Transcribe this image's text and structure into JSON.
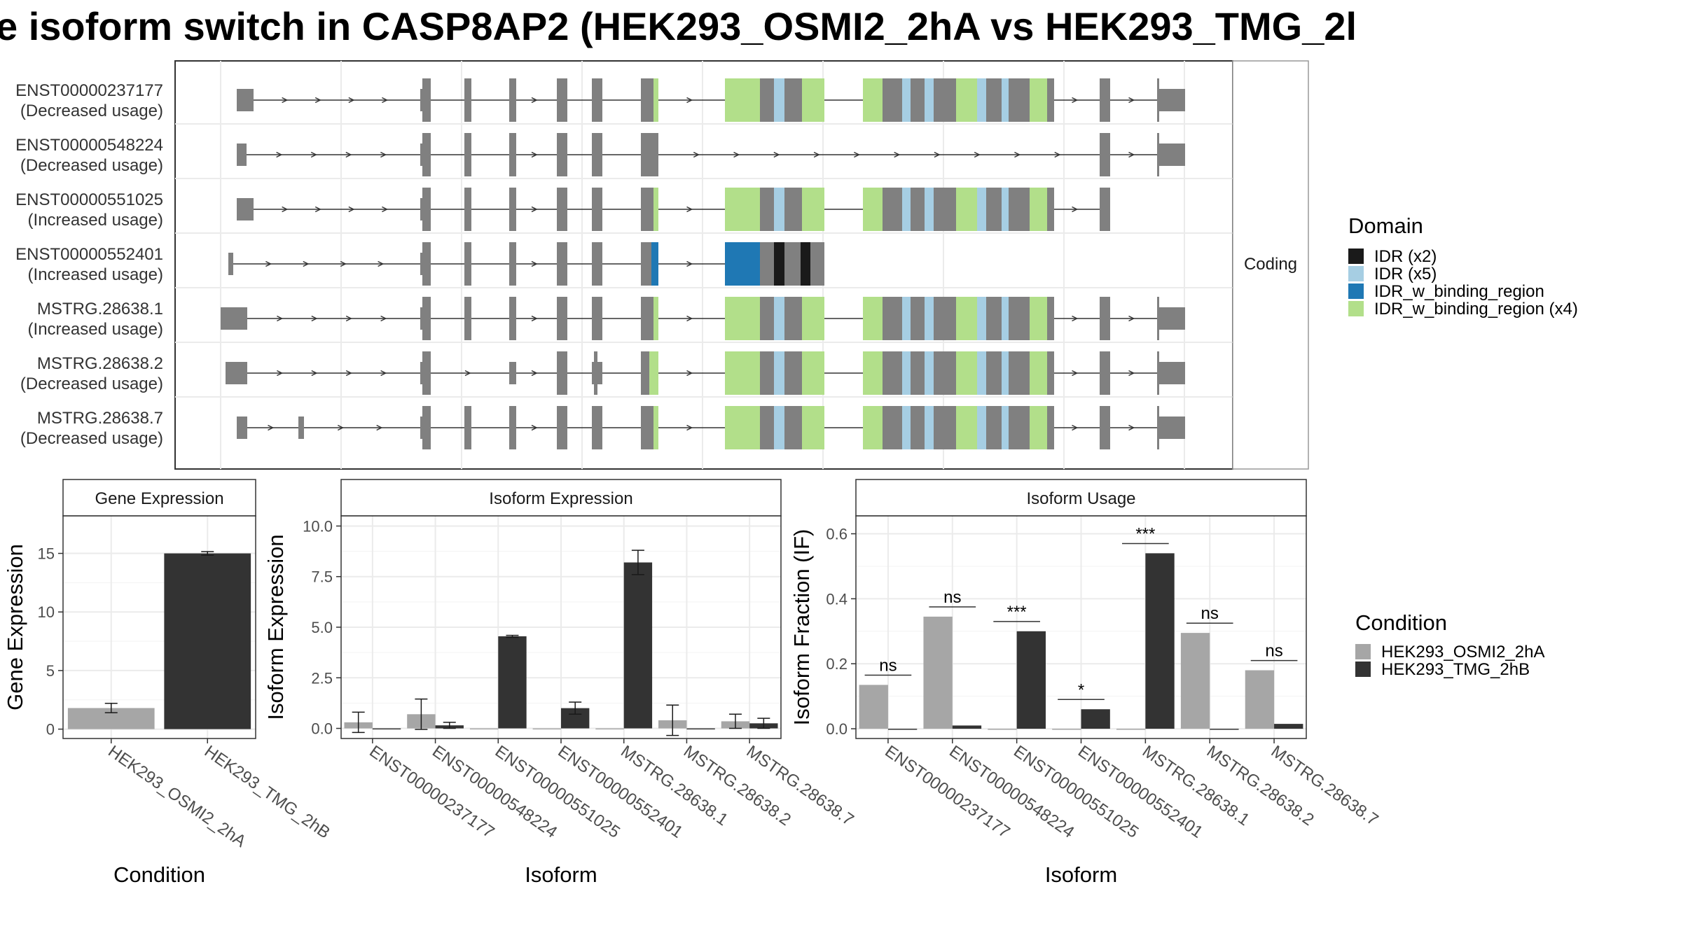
{
  "title": "e isoform switch in CASP8AP2 (HEK293_OSMI2_2hA vs HEK293_TMG_2l",
  "colors": {
    "exon_gray": "#808080",
    "idr": "#1a1a1a",
    "idr_light": "#a6cee3",
    "idr_binding": "#1f78b4",
    "idr_binding_light": "#b2df8a",
    "cond1": "#a6a6a6",
    "cond2": "#333333"
  },
  "structure": {
    "strip_label": "Coding",
    "legend_title": "Domain",
    "legend_items": [
      {
        "label": "IDR (x2)",
        "color": "#1a1a1a"
      },
      {
        "label": "IDR (x5)",
        "color": "#a6cee3"
      },
      {
        "label": "IDR_w_binding_region",
        "color": "#1f78b4"
      },
      {
        "label": "IDR_w_binding_region (x4)",
        "color": "#b2df8a"
      }
    ],
    "isoforms": [
      {
        "name": "ENST00000237177",
        "usage": "(Decreased usage)"
      },
      {
        "name": "ENST00000548224",
        "usage": "(Decreased usage)"
      },
      {
        "name": "ENST00000551025",
        "usage": "(Increased usage)"
      },
      {
        "name": "ENST00000552401",
        "usage": "(Increased usage)"
      },
      {
        "name": "MSTRG.28638.1",
        "usage": "(Increased usage)"
      },
      {
        "name": "MSTRG.28638.2",
        "usage": "(Decreased usage)"
      },
      {
        "name": "MSTRG.28638.7",
        "usage": "(Decreased usage)"
      }
    ]
  },
  "condition_legend": {
    "title": "Condition",
    "items": [
      {
        "label": "HEK293_OSMI2_2hA",
        "color": "#a6a6a6"
      },
      {
        "label": "HEK293_TMG_2hB",
        "color": "#333333"
      }
    ]
  },
  "chart_data": [
    {
      "type": "bar",
      "title": "Gene Expression",
      "xlabel": "Condition",
      "ylabel": "Gene Expression",
      "categories": [
        "HEK293_OSMI2_2hA",
        "HEK293_TMG_2hB"
      ],
      "values": [
        1.8,
        15.0
      ],
      "errors": [
        0.4,
        0.15
      ],
      "ylim": [
        -0.8,
        18.2
      ],
      "yticks": [
        0,
        5,
        10,
        15
      ],
      "ytick_labels": [
        "0",
        "5",
        "10",
        "15"
      ]
    },
    {
      "type": "bar",
      "title": "Isoform Expression",
      "xlabel": "Isoform",
      "ylabel": "Isoform Expression",
      "categories": [
        "ENST00000237177",
        "ENST00000548224",
        "ENST00000551025",
        "ENST00000552401",
        "MSTRG.28638.1",
        "MSTRG.28638.2",
        "MSTRG.28638.7"
      ],
      "series": [
        {
          "name": "HEK293_OSMI2_2hA",
          "values": [
            0.3,
            0.7,
            0.0,
            0.0,
            0.0,
            0.4,
            0.35
          ],
          "errors": [
            0.5,
            0.75,
            0.0,
            0.0,
            0.0,
            0.75,
            0.35
          ]
        },
        {
          "name": "HEK293_TMG_2hB",
          "values": [
            0.0,
            0.15,
            4.55,
            1.0,
            8.2,
            0.0,
            0.25
          ],
          "errors": [
            0.0,
            0.15,
            0.05,
            0.3,
            0.6,
            0.0,
            0.25
          ]
        }
      ],
      "ylim": [
        -0.5,
        10.5
      ],
      "yticks": [
        0,
        2.5,
        5,
        7.5,
        10
      ],
      "ytick_labels": [
        "0.0",
        "2.5",
        "5.0",
        "7.5",
        "10.0"
      ]
    },
    {
      "type": "bar",
      "title": "Isoform Usage",
      "xlabel": "Isoform",
      "ylabel": "Isoform Fraction (IF)",
      "categories": [
        "ENST00000237177",
        "ENST00000548224",
        "ENST00000551025",
        "ENST00000552401",
        "MSTRG.28638.1",
        "MSTRG.28638.2",
        "MSTRG.28638.7"
      ],
      "series": [
        {
          "name": "HEK293_OSMI2_2hA",
          "values": [
            0.135,
            0.345,
            0.0,
            0.0,
            0.0,
            0.295,
            0.18
          ]
        },
        {
          "name": "HEK293_TMG_2hB",
          "values": [
            0.0,
            0.01,
            0.3,
            0.06,
            0.54,
            0.0,
            0.015
          ]
        }
      ],
      "significance": [
        "ns",
        "ns",
        "***",
        "*",
        "***",
        "ns",
        "ns"
      ],
      "significance_level": [
        0.165,
        0.375,
        0.33,
        0.09,
        0.57,
        0.325,
        0.21
      ],
      "ylim": [
        -0.03,
        0.655
      ],
      "yticks": [
        0,
        0.2,
        0.4,
        0.6
      ],
      "ytick_labels": [
        "0.0",
        "0.2",
        "0.4",
        "0.6"
      ]
    }
  ]
}
